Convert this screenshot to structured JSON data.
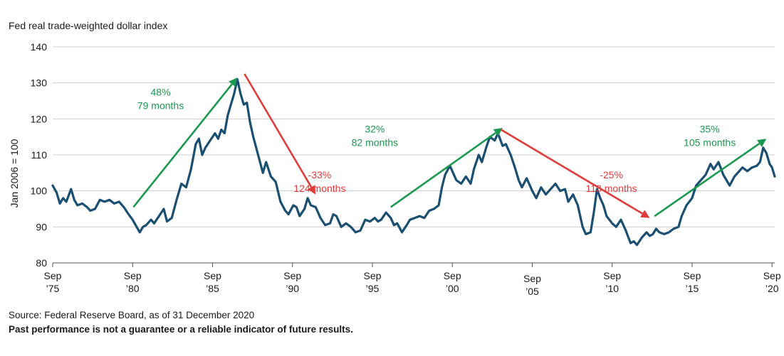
{
  "chart_data": {
    "type": "line",
    "title": "Fed real trade-weighted dollar index",
    "ylabel": "Jan 2006 = 100",
    "ylim": [
      80,
      140
    ],
    "yticks": [
      80,
      90,
      100,
      110,
      120,
      130,
      140
    ],
    "grid": "horizontal",
    "xlim": [
      1975.75,
      2020.92
    ],
    "xticks": [
      {
        "x": 1975.75,
        "line1": "Sep",
        "line2": "’75",
        "row": 1
      },
      {
        "x": 1980.75,
        "line1": "Sep",
        "line2": "’80",
        "row": 1
      },
      {
        "x": 1985.75,
        "line1": "Sep",
        "line2": "’85",
        "row": 1
      },
      {
        "x": 1990.75,
        "line1": "Sep",
        "line2": "’90",
        "row": 1
      },
      {
        "x": 1995.75,
        "line1": "Sep",
        "line2": "’95",
        "row": 1
      },
      {
        "x": 2000.75,
        "line1": "Sep",
        "line2": "’00",
        "row": 1
      },
      {
        "x": 2005.75,
        "line1": "Sep",
        "line2": "’05",
        "row": 2
      },
      {
        "x": 2010.75,
        "line1": "Sep",
        "line2": "’10",
        "row": 1
      },
      {
        "x": 2015.75,
        "line1": "Sep",
        "line2": "’15",
        "row": 1
      },
      {
        "x": 2020.75,
        "line1": "Sep",
        "line2": "’20",
        "row": 1
      }
    ],
    "series": [
      {
        "color": "#1b4f72",
        "points": [
          [
            1975.75,
            101.5
          ],
          [
            1976.0,
            99.5
          ],
          [
            1976.2,
            96.5
          ],
          [
            1976.4,
            98.0
          ],
          [
            1976.6,
            97.0
          ],
          [
            1976.9,
            100.5
          ],
          [
            1977.1,
            97.5
          ],
          [
            1977.3,
            96.0
          ],
          [
            1977.6,
            96.5
          ],
          [
            1977.9,
            95.5
          ],
          [
            1978.1,
            94.5
          ],
          [
            1978.4,
            95.0
          ],
          [
            1978.7,
            97.5
          ],
          [
            1979.0,
            97.0
          ],
          [
            1979.3,
            97.5
          ],
          [
            1979.6,
            96.5
          ],
          [
            1979.9,
            97.0
          ],
          [
            1980.2,
            95.5
          ],
          [
            1980.5,
            93.5
          ],
          [
            1980.75,
            92.0
          ],
          [
            1981.0,
            90.0
          ],
          [
            1981.2,
            88.5
          ],
          [
            1981.4,
            90.0
          ],
          [
            1981.6,
            90.5
          ],
          [
            1981.9,
            92.0
          ],
          [
            1982.1,
            91.0
          ],
          [
            1982.4,
            93.0
          ],
          [
            1982.7,
            95.0
          ],
          [
            1982.9,
            91.5
          ],
          [
            1983.2,
            92.5
          ],
          [
            1983.5,
            97.5
          ],
          [
            1983.8,
            102.0
          ],
          [
            1984.1,
            101.0
          ],
          [
            1984.4,
            106.0
          ],
          [
            1984.7,
            113.0
          ],
          [
            1984.9,
            114.5
          ],
          [
            1985.1,
            110.0
          ],
          [
            1985.3,
            112.0
          ],
          [
            1985.6,
            114.0
          ],
          [
            1985.9,
            116.0
          ],
          [
            1986.1,
            114.5
          ],
          [
            1986.3,
            117.0
          ],
          [
            1986.5,
            116.0
          ],
          [
            1986.7,
            121.0
          ],
          [
            1986.9,
            124.0
          ],
          [
            1987.1,
            127.0
          ],
          [
            1987.3,
            131.0
          ],
          [
            1987.5,
            127.0
          ],
          [
            1987.7,
            124.0
          ],
          [
            1987.9,
            124.5
          ],
          [
            1988.1,
            119.0
          ],
          [
            1988.3,
            115.0
          ],
          [
            1988.6,
            110.0
          ],
          [
            1988.9,
            105.0
          ],
          [
            1989.1,
            108.0
          ],
          [
            1989.4,
            104.0
          ],
          [
            1989.7,
            102.5
          ],
          [
            1990.0,
            97.0
          ],
          [
            1990.3,
            94.5
          ],
          [
            1990.5,
            93.5
          ],
          [
            1990.8,
            96.0
          ],
          [
            1991.0,
            95.5
          ],
          [
            1991.2,
            93.0
          ],
          [
            1991.5,
            95.0
          ],
          [
            1991.7,
            98.0
          ],
          [
            1991.9,
            96.0
          ],
          [
            1992.2,
            95.5
          ],
          [
            1992.5,
            92.5
          ],
          [
            1992.8,
            90.5
          ],
          [
            1993.1,
            91.0
          ],
          [
            1993.3,
            93.5
          ],
          [
            1993.5,
            93.0
          ],
          [
            1993.8,
            90.0
          ],
          [
            1994.1,
            91.0
          ],
          [
            1994.4,
            90.0
          ],
          [
            1994.7,
            88.5
          ],
          [
            1995.0,
            89.0
          ],
          [
            1995.3,
            92.0
          ],
          [
            1995.6,
            91.5
          ],
          [
            1995.9,
            92.5
          ],
          [
            1996.1,
            91.5
          ],
          [
            1996.3,
            92.0
          ],
          [
            1996.6,
            94.0
          ],
          [
            1996.9,
            92.5
          ],
          [
            1997.1,
            90.5
          ],
          [
            1997.3,
            91.0
          ],
          [
            1997.6,
            88.5
          ],
          [
            1997.9,
            90.5
          ],
          [
            1998.1,
            92.0
          ],
          [
            1998.4,
            92.5
          ],
          [
            1998.7,
            93.0
          ],
          [
            1999.0,
            92.5
          ],
          [
            1999.3,
            94.5
          ],
          [
            1999.6,
            95.0
          ],
          [
            1999.9,
            96.0
          ],
          [
            2000.1,
            101.0
          ],
          [
            2000.3,
            104.5
          ],
          [
            2000.6,
            107.0
          ],
          [
            2000.8,
            105.0
          ],
          [
            2001.0,
            103.0
          ],
          [
            2001.3,
            102.0
          ],
          [
            2001.6,
            104.0
          ],
          [
            2001.9,
            102.0
          ],
          [
            2002.1,
            106.0
          ],
          [
            2002.4,
            110.0
          ],
          [
            2002.6,
            108.0
          ],
          [
            2002.9,
            112.5
          ],
          [
            2003.1,
            115.0
          ],
          [
            2003.4,
            114.0
          ],
          [
            2003.6,
            116.0
          ],
          [
            2003.9,
            112.5
          ],
          [
            2004.1,
            113.0
          ],
          [
            2004.4,
            110.0
          ],
          [
            2004.7,
            106.0
          ],
          [
            2004.9,
            103.0
          ],
          [
            2005.1,
            101.0
          ],
          [
            2005.4,
            103.5
          ],
          [
            2005.75,
            100.0
          ],
          [
            2006.0,
            98.0
          ],
          [
            2006.3,
            101.0
          ],
          [
            2006.6,
            99.0
          ],
          [
            2006.9,
            100.5
          ],
          [
            2007.2,
            102.0
          ],
          [
            2007.5,
            100.0
          ],
          [
            2007.8,
            100.5
          ],
          [
            2008.0,
            97.0
          ],
          [
            2008.3,
            99.0
          ],
          [
            2008.6,
            96.0
          ],
          [
            2008.9,
            90.0
          ],
          [
            2009.1,
            88.0
          ],
          [
            2009.4,
            88.5
          ],
          [
            2009.6,
            94.0
          ],
          [
            2009.8,
            100.5
          ],
          [
            2010.0,
            98.0
          ],
          [
            2010.2,
            96.0
          ],
          [
            2010.4,
            93.0
          ],
          [
            2010.75,
            91.0
          ],
          [
            2011.0,
            90.0
          ],
          [
            2011.3,
            92.0
          ],
          [
            2011.6,
            89.0
          ],
          [
            2011.9,
            85.5
          ],
          [
            2012.1,
            86.0
          ],
          [
            2012.3,
            85.0
          ],
          [
            2012.6,
            87.0
          ],
          [
            2012.9,
            88.5
          ],
          [
            2013.1,
            87.5
          ],
          [
            2013.3,
            88.0
          ],
          [
            2013.5,
            89.5
          ],
          [
            2013.7,
            88.5
          ],
          [
            2014.0,
            88.0
          ],
          [
            2014.3,
            88.5
          ],
          [
            2014.6,
            89.5
          ],
          [
            2014.9,
            90.0
          ],
          [
            2015.1,
            93.0
          ],
          [
            2015.4,
            96.0
          ],
          [
            2015.75,
            98.0
          ],
          [
            2016.0,
            101.5
          ],
          [
            2016.3,
            103.0
          ],
          [
            2016.6,
            104.5
          ],
          [
            2016.9,
            107.5
          ],
          [
            2017.1,
            106.0
          ],
          [
            2017.4,
            108.0
          ],
          [
            2017.7,
            104.5
          ],
          [
            2017.9,
            103.0
          ],
          [
            2018.1,
            101.5
          ],
          [
            2018.4,
            104.0
          ],
          [
            2018.7,
            105.5
          ],
          [
            2018.9,
            106.5
          ],
          [
            2019.2,
            105.5
          ],
          [
            2019.5,
            106.5
          ],
          [
            2019.8,
            107.0
          ],
          [
            2020.0,
            108.0
          ],
          [
            2020.2,
            112.0
          ],
          [
            2020.4,
            110.5
          ],
          [
            2020.6,
            107.5
          ],
          [
            2020.75,
            106.5
          ],
          [
            2020.92,
            104.0
          ]
        ]
      }
    ],
    "arrows": [
      {
        "color": "#1a9850",
        "from": [
          1980.8,
          95.5
        ],
        "to": [
          1987.3,
          131.5
        ]
      },
      {
        "color": "#e03c3c",
        "from": [
          1987.75,
          132.5
        ],
        "to": [
          1992.2,
          99.0
        ]
      },
      {
        "color": "#1a9850",
        "from": [
          1996.9,
          95.5
        ],
        "to": [
          2003.9,
          117.5
        ]
      },
      {
        "color": "#e03c3c",
        "from": [
          2003.8,
          117.0
        ],
        "to": [
          2013.1,
          92.5
        ]
      },
      {
        "color": "#1a9850",
        "from": [
          2013.4,
          93.0
        ],
        "to": [
          2020.4,
          114.5
        ]
      }
    ],
    "annotations": [
      {
        "color": "#1a9850",
        "x": 1982.5,
        "y": 126.5,
        "lines": [
          "48%",
          "79 months"
        ]
      },
      {
        "color": "#e03c3c",
        "x": 1992.45,
        "y": 103.5,
        "lines": [
          "-33%",
          "124 months"
        ]
      },
      {
        "color": "#1a9850",
        "x": 1995.9,
        "y": 116.2,
        "lines": [
          "32%",
          "82 months"
        ]
      },
      {
        "color": "#e03c3c",
        "x": 2010.7,
        "y": 103.5,
        "lines": [
          "-25%",
          "113 months"
        ]
      },
      {
        "color": "#1a9850",
        "x": 2016.85,
        "y": 116.2,
        "lines": [
          "35%",
          "105 months"
        ]
      }
    ]
  },
  "footer": {
    "source": "Source: Federal Reserve Board, as of 31 December 2020",
    "disclaimer": "Past performance is not a guarantee or a reliable indicator of future results."
  }
}
